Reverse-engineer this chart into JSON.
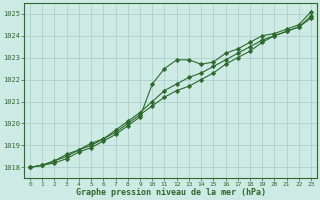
{
  "x": [
    0,
    1,
    2,
    3,
    4,
    5,
    6,
    7,
    8,
    9,
    10,
    11,
    12,
    13,
    14,
    15,
    16,
    17,
    18,
    19,
    20,
    21,
    22,
    23
  ],
  "line1": [
    1018.0,
    1018.1,
    1018.2,
    1018.4,
    1018.7,
    1018.9,
    1019.2,
    1019.5,
    1019.9,
    1020.3,
    1021.8,
    1022.5,
    1022.9,
    1022.9,
    1022.7,
    1022.8,
    1023.2,
    1023.4,
    1023.7,
    1024.0,
    1024.1,
    1024.3,
    1024.5,
    1025.1
  ],
  "line2": [
    1018.0,
    1018.1,
    1018.3,
    1018.6,
    1018.8,
    1019.1,
    1019.3,
    1019.7,
    1020.1,
    1020.5,
    1021.0,
    1021.5,
    1021.8,
    1022.1,
    1022.3,
    1022.6,
    1022.9,
    1023.2,
    1023.5,
    1023.8,
    1024.0,
    1024.2,
    1024.4,
    1024.8
  ],
  "line3": [
    1018.0,
    1018.1,
    1018.3,
    1018.5,
    1018.8,
    1019.0,
    1019.3,
    1019.6,
    1020.0,
    1020.4,
    1020.8,
    1021.2,
    1021.5,
    1021.7,
    1022.0,
    1022.3,
    1022.7,
    1023.0,
    1023.3,
    1023.7,
    1024.0,
    1024.2,
    1024.4,
    1024.9
  ],
  "line_color": "#2d6a2d",
  "bg_color": "#cdeae4",
  "grid_color": "#aaccc6",
  "ylim": [
    1017.5,
    1025.5
  ],
  "yticks": [
    1018,
    1019,
    1020,
    1021,
    1022,
    1023,
    1024,
    1025
  ],
  "xlim": [
    -0.5,
    23.5
  ],
  "xticks": [
    0,
    1,
    2,
    3,
    4,
    5,
    6,
    7,
    8,
    9,
    10,
    11,
    12,
    13,
    14,
    15,
    16,
    17,
    18,
    19,
    20,
    21,
    22,
    23
  ],
  "xlabel": "Graphe pression niveau de la mer (hPa)",
  "marker": "D",
  "markersize": 2.2,
  "linewidth": 0.8
}
